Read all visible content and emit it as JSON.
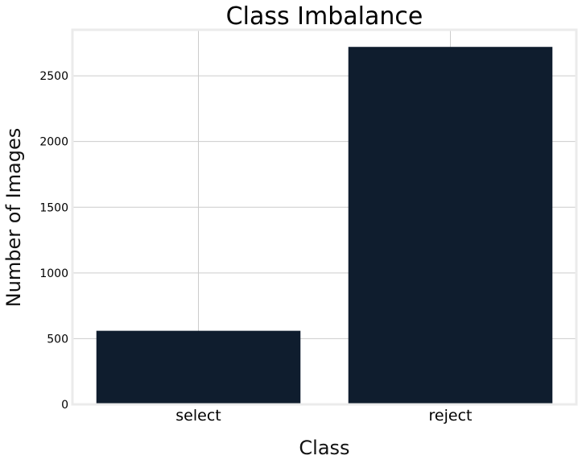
{
  "chart_data": {
    "type": "bar",
    "title": "Class Imbalance",
    "xlabel": "Class",
    "ylabel": "Number of Images",
    "categories": [
      "select",
      "reject"
    ],
    "values": [
      560,
      2720
    ],
    "ylim": [
      0,
      2850
    ],
    "yticks": [
      0,
      500,
      1000,
      1500,
      2000,
      2500
    ],
    "ytick_labels": [
      "0",
      "500",
      "1000",
      "1500",
      "2000",
      "2500"
    ],
    "bar_color": "#0f1d2e",
    "grid": true,
    "legend": "none"
  }
}
